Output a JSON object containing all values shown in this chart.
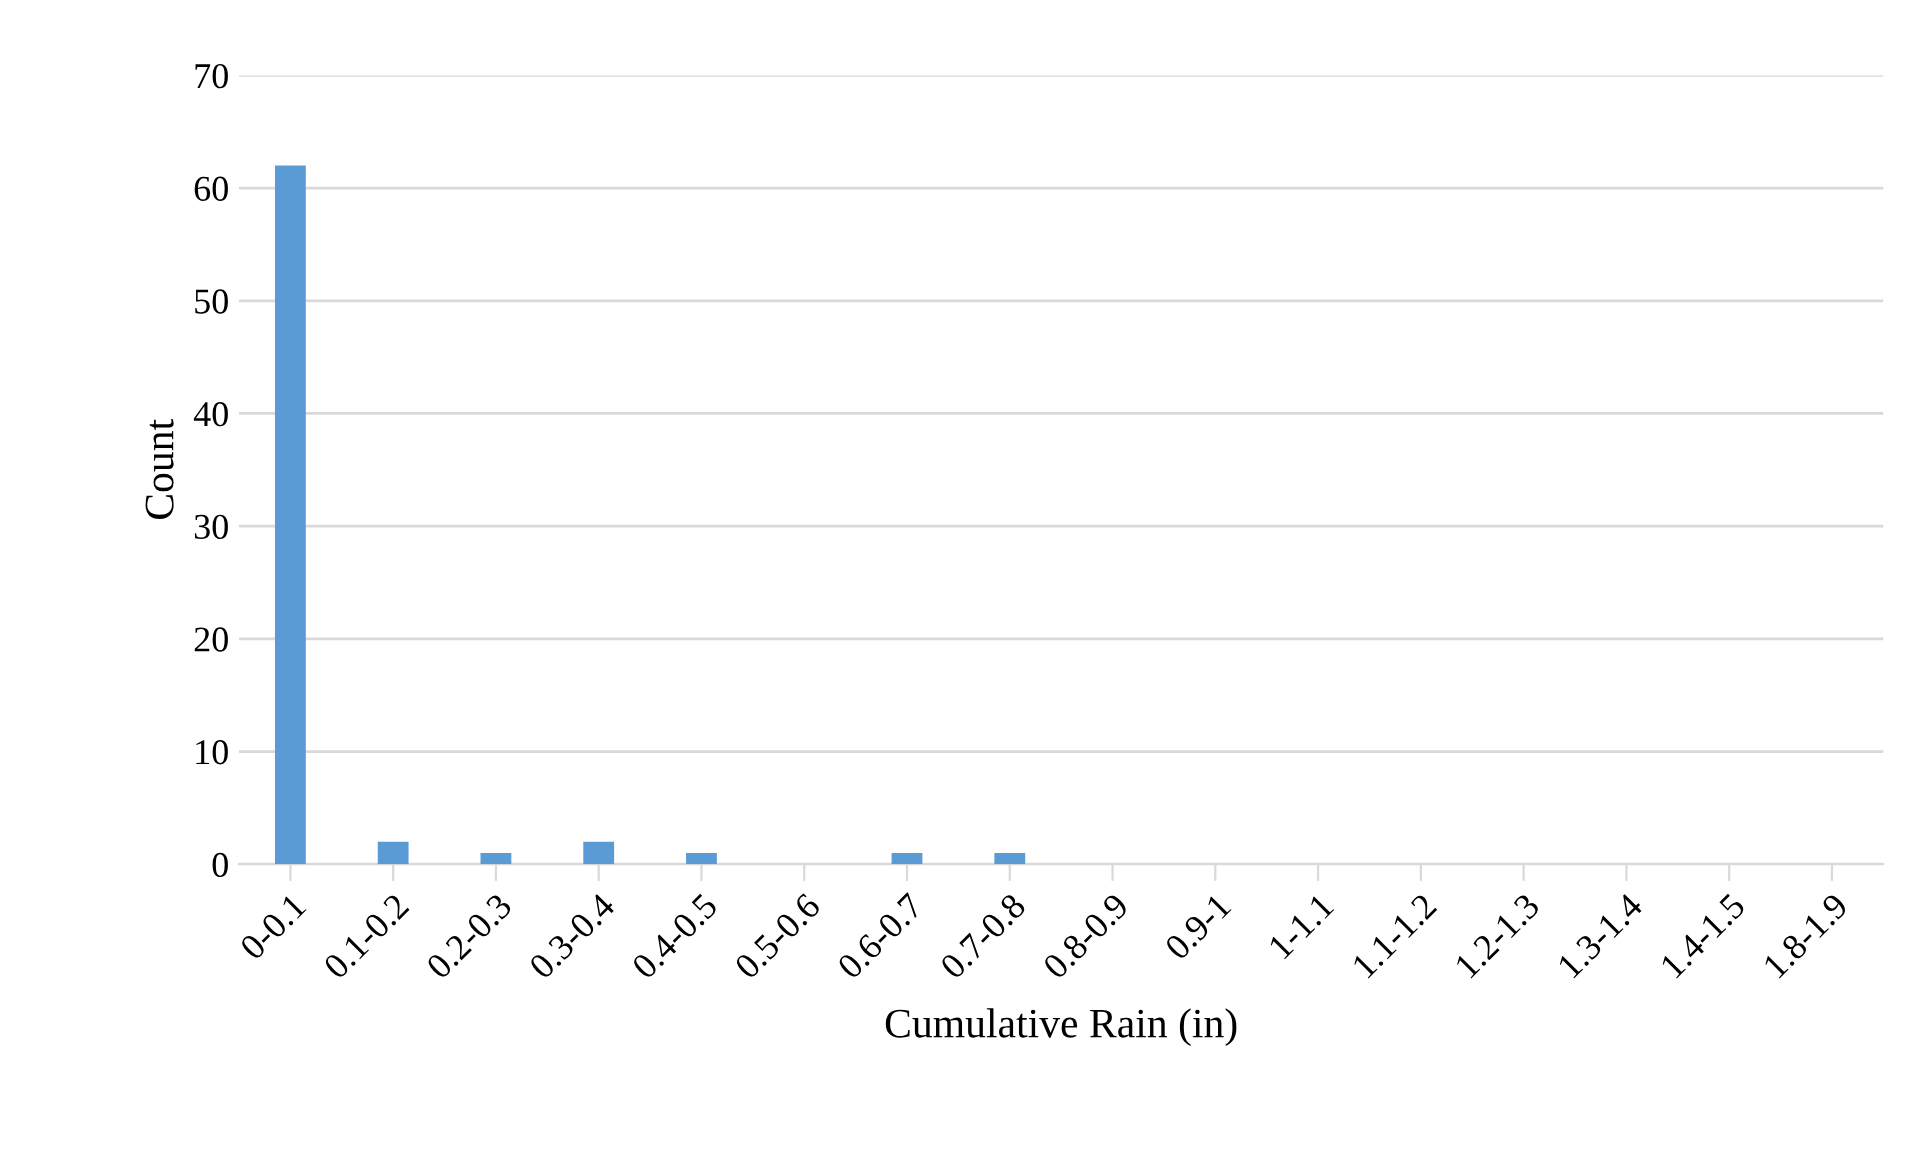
{
  "chart_data": {
    "type": "bar",
    "xlabel": "Cumulative Rain (in)",
    "ylabel": "Count",
    "categories": [
      "0-0.1",
      "0.1-0.2",
      "0.2-0.3",
      "0.3-0.4",
      "0.4-0.5",
      "0.5-0.6",
      "0.6-0.7",
      "0.7-0.8",
      "0.8-0.9",
      "0.9-1",
      "1-1.1",
      "1.1-1.2",
      "1.2-1.3",
      "1.3-1.4",
      "1.4-1.5",
      "1.8-1.9"
    ],
    "values": [
      62,
      2,
      1,
      2,
      1,
      0,
      1,
      1,
      0,
      0,
      0,
      0,
      0,
      0,
      0,
      0
    ],
    "color": "#5b9bd5",
    "ylim": [
      0,
      70
    ],
    "yticks": [
      0,
      10,
      20,
      30,
      40,
      50,
      60,
      70
    ],
    "grid": "y"
  }
}
